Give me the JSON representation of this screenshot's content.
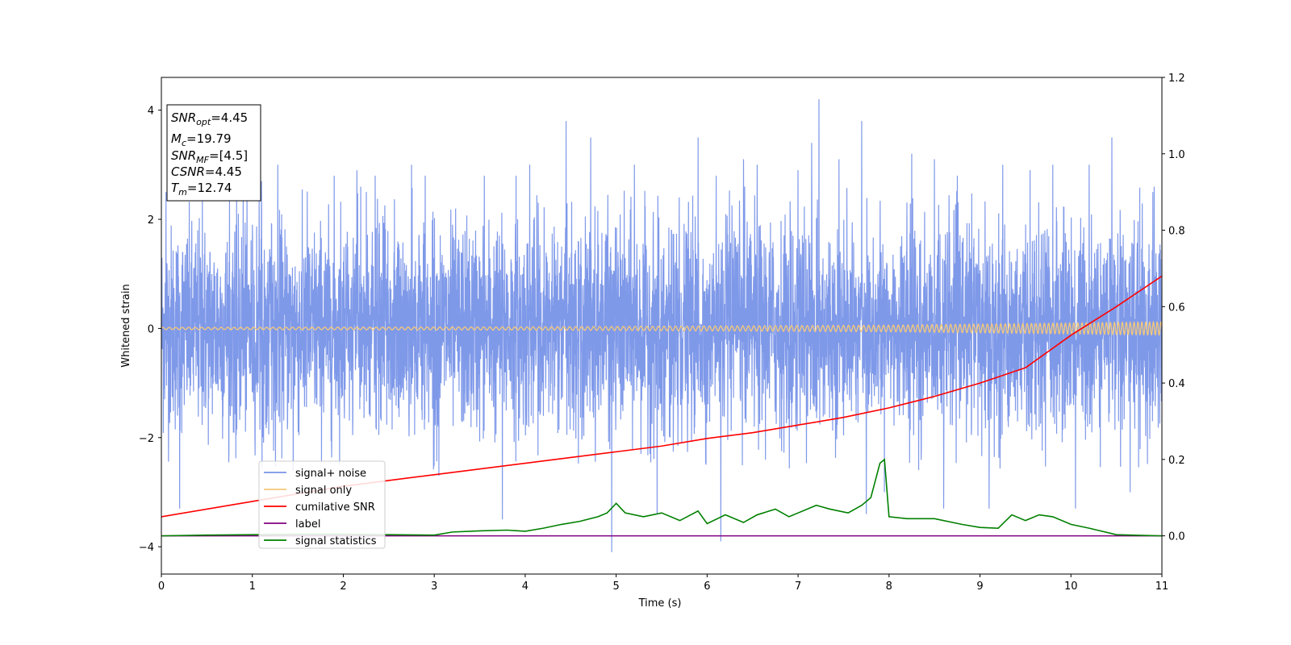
{
  "chart_data": {
    "type": "line",
    "title": "",
    "xlabel": "Time (s)",
    "ylabel": "Whitened strain",
    "xlim": [
      0,
      11
    ],
    "ylim": [
      -4.5,
      4.6
    ],
    "y2lim": [
      -0.1,
      1.2
    ],
    "x_ticks": [
      "0",
      "1",
      "2",
      "3",
      "4",
      "5",
      "6",
      "7",
      "8",
      "9",
      "10",
      "11"
    ],
    "y_ticks": [
      "4",
      "2",
      "0",
      "−2",
      "−4"
    ],
    "y2_ticks": [
      "0.0",
      "0.2",
      "0.4",
      "0.6",
      "0.8",
      "1.0",
      "1.2"
    ],
    "grid": false,
    "legend_position": "lower-left",
    "annotation": {
      "snr_opt_value": "=4.45",
      "mc_value": "=19.79",
      "snr_mf_value": "=[4.5]",
      "csnr_value": "=4.45",
      "tm_value": "=12.74"
    },
    "series": [
      {
        "name": "signal+ noise",
        "color": "#7893e8",
        "axis": "left",
        "amplitude_typical": 1.5,
        "peaks": [
          [
            0.05,
            2.5
          ],
          [
            0.2,
            -3.3
          ],
          [
            0.45,
            2.6
          ],
          [
            0.75,
            2.4
          ],
          [
            0.9,
            2.4
          ],
          [
            1.1,
            2.7
          ],
          [
            1.28,
            3.0
          ],
          [
            1.45,
            -2.6
          ],
          [
            1.9,
            2.8
          ],
          [
            2.15,
            2.9
          ],
          [
            2.35,
            2.8
          ],
          [
            2.75,
            3.0
          ],
          [
            2.9,
            2.8
          ],
          [
            3.05,
            -2.7
          ],
          [
            3.55,
            2.8
          ],
          [
            3.75,
            -3.5
          ],
          [
            3.9,
            2.8
          ],
          [
            4.05,
            3.0
          ],
          [
            4.45,
            3.8
          ],
          [
            4.72,
            3.5
          ],
          [
            4.95,
            -4.1
          ],
          [
            5.2,
            3.0
          ],
          [
            5.45,
            -3.4
          ],
          [
            5.9,
            3.5
          ],
          [
            6.1,
            2.8
          ],
          [
            6.15,
            -3.9
          ],
          [
            6.4,
            3.1
          ],
          [
            6.55,
            3.0
          ],
          [
            7.0,
            2.9
          ],
          [
            7.15,
            3.4
          ],
          [
            7.23,
            4.2
          ],
          [
            7.45,
            3.1
          ],
          [
            7.7,
            3.8
          ],
          [
            7.75,
            -3.4
          ],
          [
            7.95,
            -3.0
          ],
          [
            8.25,
            3.2
          ],
          [
            8.5,
            3.1
          ],
          [
            8.6,
            -3.3
          ],
          [
            8.75,
            2.8
          ],
          [
            9.1,
            -3.3
          ],
          [
            9.25,
            3.0
          ],
          [
            9.55,
            2.9
          ],
          [
            9.8,
            3.0
          ],
          [
            10.05,
            -3.3
          ],
          [
            10.2,
            3.0
          ],
          [
            10.45,
            3.5
          ],
          [
            10.65,
            -3.0
          ],
          [
            10.9,
            2.5
          ]
        ]
      },
      {
        "name": "signal only",
        "color": "#f5c97a",
        "axis": "left",
        "description_points": [
          [
            0,
            0.02
          ],
          [
            4,
            0.03
          ],
          [
            8,
            0.06
          ],
          [
            10,
            0.1
          ],
          [
            11,
            0.12
          ]
        ]
      },
      {
        "name": "cumilative SNR",
        "color": "#ff0000",
        "axis": "right",
        "points": [
          [
            0,
            0.05
          ],
          [
            0.5,
            0.07
          ],
          [
            1,
            0.09
          ],
          [
            1.5,
            0.11
          ],
          [
            2,
            0.13
          ],
          [
            2.5,
            0.145
          ],
          [
            3,
            0.16
          ],
          [
            3.5,
            0.175
          ],
          [
            4,
            0.19
          ],
          [
            4.5,
            0.205
          ],
          [
            5,
            0.22
          ],
          [
            5.5,
            0.235
          ],
          [
            6,
            0.255
          ],
          [
            6.5,
            0.27
          ],
          [
            7,
            0.29
          ],
          [
            7.5,
            0.31
          ],
          [
            8,
            0.335
          ],
          [
            8.5,
            0.365
          ],
          [
            9,
            0.4
          ],
          [
            9.5,
            0.44
          ],
          [
            10,
            0.525
          ],
          [
            10.5,
            0.6
          ],
          [
            11,
            0.68
          ]
        ]
      },
      {
        "name": "label",
        "color": "#800080",
        "axis": "right",
        "points": [
          [
            0,
            0.0
          ],
          [
            11,
            0.0
          ]
        ]
      },
      {
        "name": "signal statistics",
        "color": "#008000",
        "axis": "right",
        "points": [
          [
            0,
            0.0
          ],
          [
            0.5,
            0.002
          ],
          [
            1,
            0.003
          ],
          [
            1.5,
            0.004
          ],
          [
            2,
            0.004
          ],
          [
            2.5,
            0.003
          ],
          [
            3,
            0.002
          ],
          [
            3.2,
            0.01
          ],
          [
            3.5,
            0.013
          ],
          [
            3.8,
            0.015
          ],
          [
            4,
            0.012
          ],
          [
            4.2,
            0.02
          ],
          [
            4.4,
            0.03
          ],
          [
            4.6,
            0.038
          ],
          [
            4.8,
            0.05
          ],
          [
            4.9,
            0.06
          ],
          [
            5.0,
            0.085
          ],
          [
            5.1,
            0.06
          ],
          [
            5.3,
            0.05
          ],
          [
            5.5,
            0.06
          ],
          [
            5.7,
            0.04
          ],
          [
            5.9,
            0.065
          ],
          [
            6.0,
            0.032
          ],
          [
            6.2,
            0.055
          ],
          [
            6.4,
            0.035
          ],
          [
            6.55,
            0.055
          ],
          [
            6.75,
            0.07
          ],
          [
            6.9,
            0.05
          ],
          [
            7.0,
            0.06
          ],
          [
            7.2,
            0.08
          ],
          [
            7.35,
            0.07
          ],
          [
            7.55,
            0.06
          ],
          [
            7.7,
            0.08
          ],
          [
            7.8,
            0.1
          ],
          [
            7.9,
            0.19
          ],
          [
            7.95,
            0.2
          ],
          [
            8.0,
            0.05
          ],
          [
            8.2,
            0.045
          ],
          [
            8.5,
            0.045
          ],
          [
            8.8,
            0.03
          ],
          [
            9.0,
            0.022
          ],
          [
            9.2,
            0.02
          ],
          [
            9.35,
            0.055
          ],
          [
            9.5,
            0.04
          ],
          [
            9.65,
            0.055
          ],
          [
            9.8,
            0.05
          ],
          [
            10.0,
            0.03
          ],
          [
            10.2,
            0.02
          ],
          [
            10.5,
            0.003
          ],
          [
            11,
            0.0
          ]
        ]
      }
    ]
  }
}
